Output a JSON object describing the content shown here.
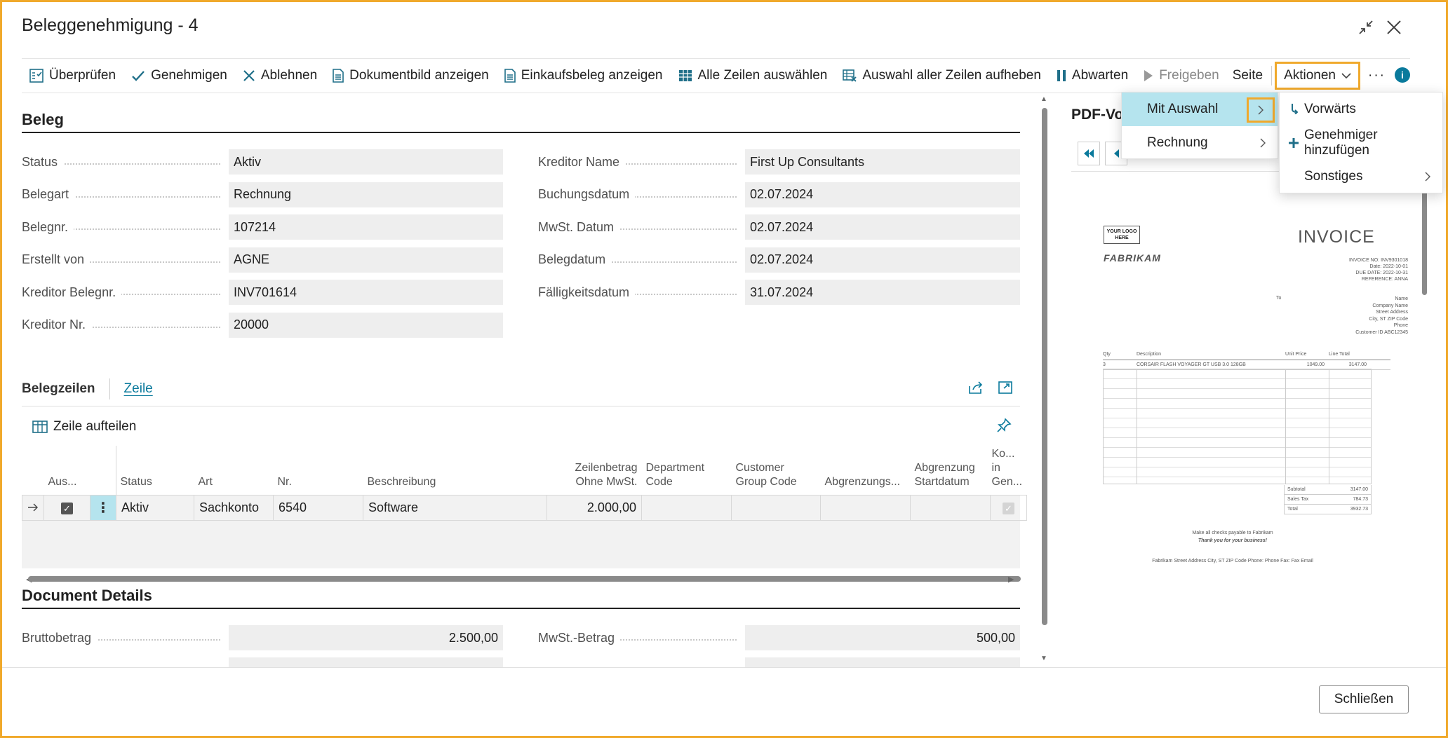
{
  "window": {
    "title": "Beleggenehmigung - 4"
  },
  "toolbar": {
    "items": [
      {
        "label": "Überprüfen",
        "icon": "review-icon"
      },
      {
        "label": "Genehmigen",
        "icon": "checkmark-icon"
      },
      {
        "label": "Ablehnen",
        "icon": "x-icon"
      },
      {
        "label": "Dokumentbild anzeigen",
        "icon": "document-icon"
      },
      {
        "label": "Einkaufsbeleg anzeigen",
        "icon": "document-icon"
      },
      {
        "label": "Alle Zeilen auswählen",
        "icon": "table-icon"
      },
      {
        "label": "Auswahl aller Zeilen aufheben",
        "icon": "table-clear-icon"
      },
      {
        "label": "Abwarten",
        "icon": "pause-icon"
      },
      {
        "label": "Freigeben",
        "icon": "play-icon"
      }
    ],
    "seite": "Seite",
    "aktionen": "Aktionen",
    "more": "···",
    "info": "i"
  },
  "beleg": {
    "title": "Beleg",
    "left_fields": [
      {
        "label": "Status",
        "value": "Aktiv"
      },
      {
        "label": "Belegart",
        "value": "Rechnung"
      },
      {
        "label": "Belegnr.",
        "value": "107214"
      },
      {
        "label": "Erstellt von",
        "value": "AGNE"
      },
      {
        "label": "Kreditor Belegnr.",
        "value": "INV701614"
      },
      {
        "label": "Kreditor Nr.",
        "value": "20000"
      }
    ],
    "right_fields": [
      {
        "label": "Kreditor Name",
        "value": "First Up Consultants"
      },
      {
        "label": "Buchungsdatum",
        "value": "02.07.2024"
      },
      {
        "label": "MwSt. Datum",
        "value": "02.07.2024"
      },
      {
        "label": "Belegdatum",
        "value": "02.07.2024"
      },
      {
        "label": "Fälligkeitsdatum",
        "value": "31.07.2024"
      }
    ]
  },
  "lines": {
    "tab_main": "Belegzeilen",
    "tab_zeile": "Zeile",
    "split_action": "Zeile aufteilen",
    "columns": {
      "aus": "Aus...",
      "status": "Status",
      "art": "Art",
      "nr": "Nr.",
      "beschreibung": "Beschreibung",
      "zeilenbetrag_1": "Zeilenbetrag",
      "zeilenbetrag_2": "Ohne MwSt.",
      "dept_1": "Department",
      "dept_2": "Code",
      "cust_1": "Customer",
      "cust_2": "Group Code",
      "abgr": "Abgrenzungs...",
      "abgr_start_1": "Abgrenzung",
      "abgr_start_2": "Startdatum",
      "ko_1": "Ko...",
      "ko_2": "in",
      "ko_3": "Gen..."
    },
    "row": {
      "status": "Aktiv",
      "art": "Sachkonto",
      "nr": "6540",
      "beschreibung": "Software",
      "zeilenbetrag": "2.000,00",
      "dept": "",
      "cust": "",
      "abgr": "",
      "abgr_start": ""
    }
  },
  "details": {
    "title": "Document Details",
    "left_fields": [
      {
        "label": "Bruttobetrag",
        "value": "2.500,00"
      }
    ],
    "right_fields": [
      {
        "label": "MwSt.-Betrag",
        "value": "500,00"
      }
    ]
  },
  "pdf": {
    "title": "PDF-Vo",
    "invoice": {
      "logo_1": "YOUR LOGO",
      "logo_2": "HERE",
      "company": "FABRIKAM",
      "heading": "INVOICE",
      "meta": [
        "INVOICE NO: INV9301018",
        "Date: 2022-10-01",
        "DUE DATE: 2022-10-31",
        "REFERENCE: ANNA"
      ],
      "to_label": "To",
      "to_lines": [
        "Name",
        "Company Name",
        "Street Address",
        "City, ST ZIP Code",
        "Phone",
        "Customer ID ABC12345"
      ],
      "cols": [
        "Qty",
        "Description",
        "Unit Price",
        "Line Total"
      ],
      "item": {
        "qty": "3",
        "desc": "CORSAIR FLASH VOYAGER GT USB 3.0 128GB",
        "unit": "1049.00",
        "total": "3147.00"
      },
      "subtotal_label": "Subtotal",
      "subtotal": "3147.00",
      "tax_label": "Sales Tax",
      "tax": "784.73",
      "total_label": "Total",
      "total": "3932.73",
      "footer_1": "Make all checks payable to Fabrikam",
      "footer_2": "Thank you for your business!",
      "footer_3": "Fabrikam Street Address City, ST ZIP Code  Phone: Phone  Fax: Fax  Email"
    }
  },
  "menu": {
    "level1": [
      {
        "label": "Mit Auswahl"
      },
      {
        "label": "Rechnung"
      }
    ],
    "level2": [
      {
        "label": "Vorwärts",
        "icon": "forward-arrow-icon"
      },
      {
        "label": "Genehmiger hinzufügen",
        "icon": "plus-icon"
      },
      {
        "label": "Sonstiges"
      }
    ]
  },
  "footer": {
    "close": "Schließen"
  },
  "colors": {
    "accent": "#0a7a9c",
    "highlight": "#f0a92c",
    "menu_active": "#b5e4ee"
  }
}
